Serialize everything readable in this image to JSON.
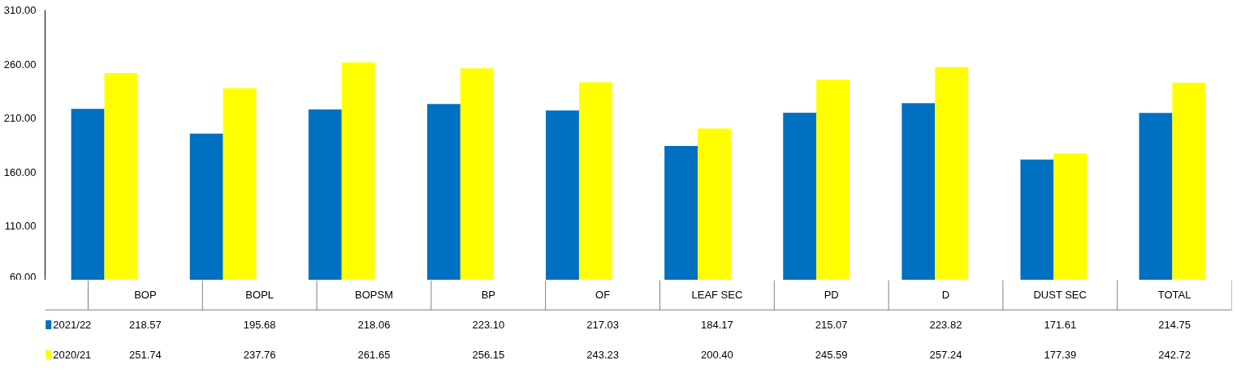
{
  "chart_data": {
    "type": "bar",
    "categories": [
      "BOP",
      "BOPL",
      "BOPSM",
      "BP",
      "OF",
      "LEAF SEC",
      "PD",
      "D",
      "DUST SEC",
      "TOTAL"
    ],
    "series": [
      {
        "name": "2021/22",
        "color": "#0070c0",
        "values": [
          218.57,
          195.68,
          218.06,
          223.1,
          217.03,
          184.17,
          215.07,
          223.82,
          171.61,
          214.75
        ],
        "value_labels": [
          "218.57",
          "195.68",
          "218.06",
          "223.10",
          "217.03",
          "184.17",
          "215.07",
          "223.82",
          "171.61",
          "214.75"
        ]
      },
      {
        "name": "2020/21",
        "color": "#ffff00",
        "values": [
          251.74,
          237.76,
          261.65,
          256.15,
          243.23,
          200.4,
          245.59,
          257.24,
          177.39,
          242.72
        ],
        "value_labels": [
          "251.74",
          "237.76",
          "261.65",
          "256.15",
          "243.23",
          "200.40",
          "245.59",
          "257.24",
          "177.39",
          "242.72"
        ]
      }
    ],
    "ylim": [
      60,
      310
    ],
    "yticks": [
      {
        "value": 60,
        "label": "60.00"
      },
      {
        "value": 110,
        "label": "110.00"
      },
      {
        "value": 160,
        "label": "160.00"
      },
      {
        "value": 210,
        "label": "210.00"
      },
      {
        "value": 260,
        "label": "260.00"
      },
      {
        "value": 310,
        "label": "310.00"
      }
    ],
    "grid": false,
    "legend": "left"
  }
}
